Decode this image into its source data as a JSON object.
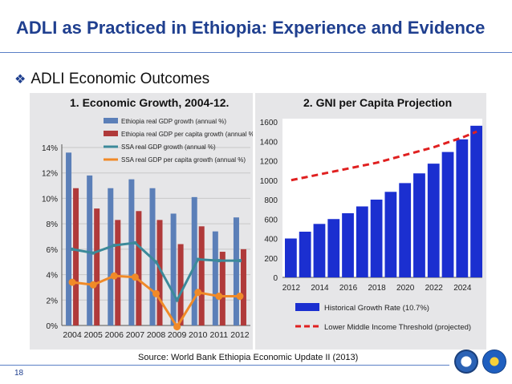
{
  "slide": {
    "title": "ADLI as Practiced in Ethiopia: Experience and Evidence",
    "bullet": "ADLI Economic Outcomes",
    "source": "Source: World Bank Ethiopia Economic Update II (2013)",
    "page_number": "18"
  },
  "colors": {
    "title": "#1f3f8f",
    "eth_gdp": "#5b7fb8",
    "eth_gdp_pc": "#b03a3a",
    "ssa_gdp": "#3c8a9a",
    "ssa_gdp_pc": "#f08a28",
    "gni_bar": "#1b2fd0",
    "threshold": "#e02020"
  },
  "chart_data": [
    {
      "type": "bar",
      "title": "1.  Economic Growth, 2004-12.",
      "categories": [
        "2004",
        "2005",
        "2006",
        "2007",
        "2008",
        "2009",
        "2010",
        "2011",
        "2012"
      ],
      "ylim": [
        0,
        14
      ],
      "yticks": [
        "0%",
        "2%",
        "4%",
        "6%",
        "8%",
        "10%",
        "12%",
        "14%"
      ],
      "series": [
        {
          "name": "Ethiopia real GDP growth (annual %)",
          "kind": "bar",
          "values": [
            13.6,
            11.8,
            10.8,
            11.5,
            10.8,
            8.8,
            10.1,
            7.4,
            8.5
          ]
        },
        {
          "name": "Ethiopia real GDP per capita growth (annual %)",
          "kind": "bar",
          "values": [
            10.8,
            9.2,
            8.3,
            9.0,
            8.3,
            6.4,
            7.8,
            5.8,
            6.0
          ]
        },
        {
          "name": "SSA real GDP growth (annual %)",
          "kind": "line",
          "values": [
            6.0,
            5.7,
            6.3,
            6.5,
            5.0,
            2.0,
            5.2,
            5.1,
            5.1
          ]
        },
        {
          "name": "SSA real GDP per capita growth (annual %)",
          "kind": "line",
          "values": [
            3.4,
            3.2,
            3.9,
            3.8,
            2.5,
            -0.1,
            2.6,
            2.3,
            2.3
          ]
        }
      ]
    },
    {
      "type": "bar",
      "title": "2.  GNI per Capita Projection",
      "categories": [
        "2012",
        "2013",
        "2014",
        "2015",
        "2016",
        "2017",
        "2018",
        "2019",
        "2020",
        "2021",
        "2022",
        "2023",
        "2024",
        "2025"
      ],
      "xticks": [
        "2012",
        "2014",
        "2016",
        "2018",
        "2020",
        "2022",
        "2024"
      ],
      "ylim": [
        0,
        1600
      ],
      "yticks": [
        "0",
        "200",
        "400",
        "600",
        "800",
        "1000",
        "1200",
        "1400",
        "1600"
      ],
      "series": [
        {
          "name": "Historical Growth Rate (10.7%)",
          "kind": "bar",
          "values": [
            400,
            470,
            550,
            600,
            660,
            730,
            800,
            880,
            970,
            1070,
            1170,
            1290,
            1420,
            1560
          ]
        },
        {
          "name": "Lower Middle Income Threshold (projected)",
          "kind": "dashed-line",
          "values": [
            1000,
            1030,
            1060,
            1090,
            1120,
            1150,
            1180,
            1220,
            1260,
            1300,
            1340,
            1390,
            1440,
            1500
          ]
        }
      ]
    }
  ]
}
